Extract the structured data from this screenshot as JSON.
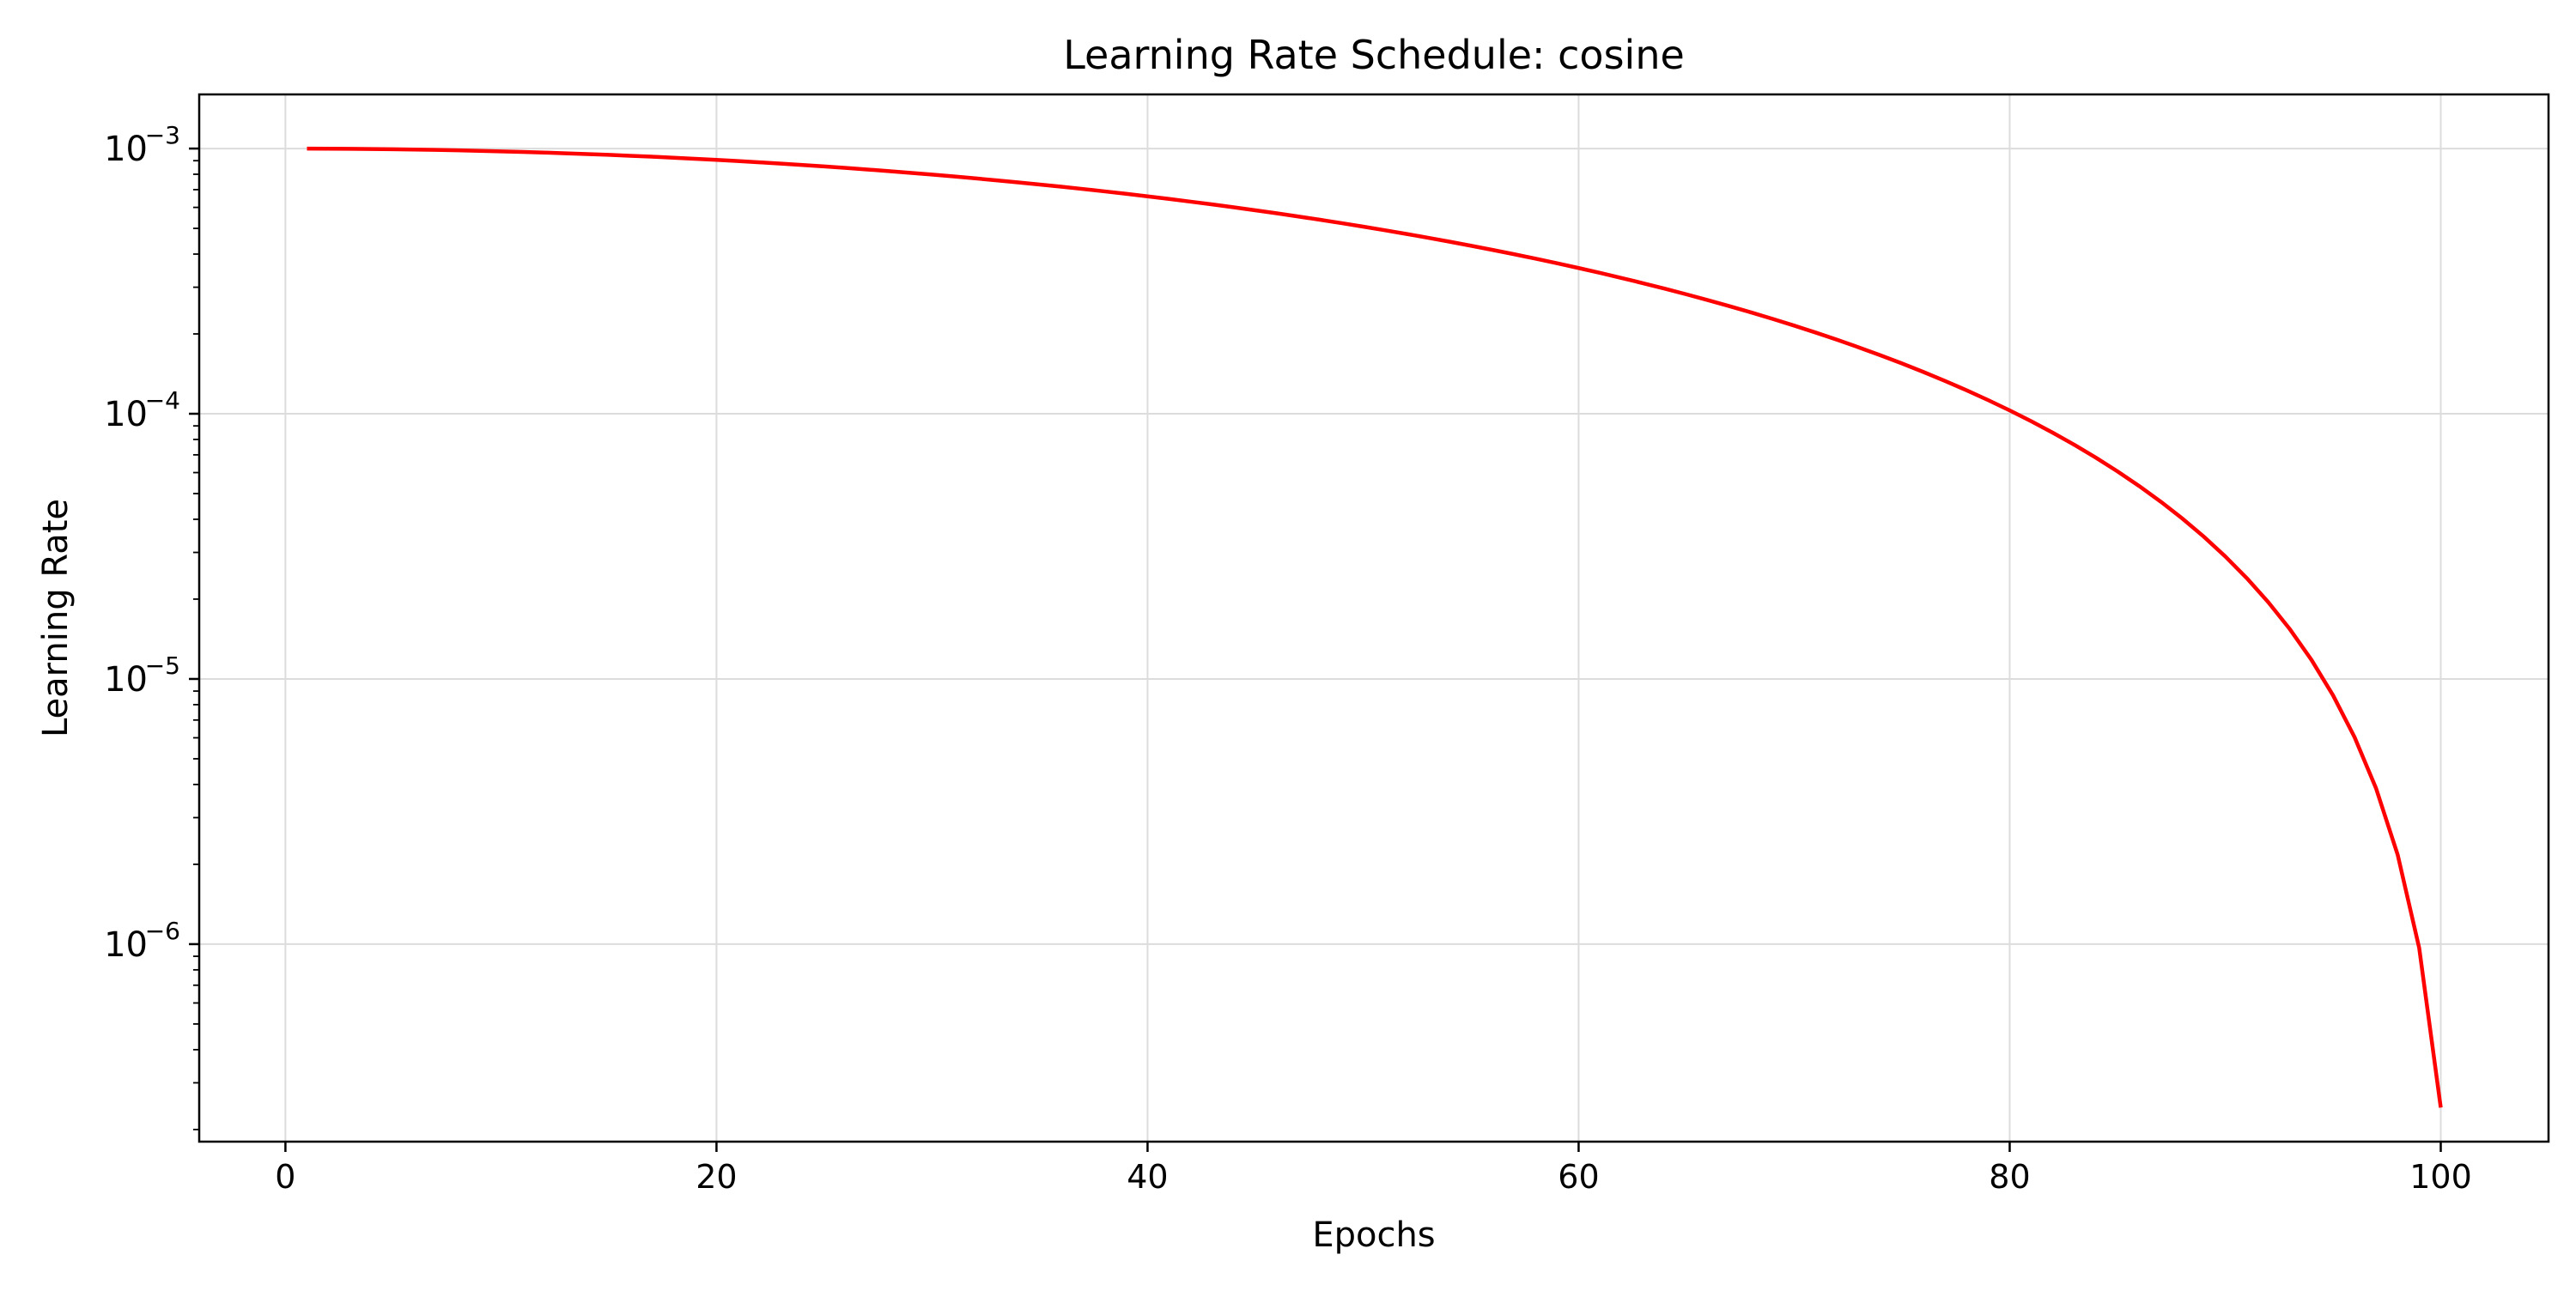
{
  "chart_data": {
    "type": "line",
    "title": "Learning Rate Schedule: cosine",
    "xlabel": "Epochs",
    "ylabel": "Learning Rate",
    "xlim": [
      -4,
      105
    ],
    "ylim": [
      1.8e-07,
      0.0016
    ],
    "yscale": "log",
    "grid": true,
    "legend": "none",
    "x_ticks": [
      0,
      20,
      40,
      60,
      80,
      100
    ],
    "x_tick_labels": [
      "0",
      "20",
      "40",
      "60",
      "80",
      "100"
    ],
    "y_ticks": [
      1e-06,
      1e-05,
      0.0001,
      0.001
    ],
    "y_tick_labels": [
      {
        "base": "10",
        "exp": "−6"
      },
      {
        "base": "10",
        "exp": "−5"
      },
      {
        "base": "10",
        "exp": "−4"
      },
      {
        "base": "10",
        "exp": "−3"
      }
    ],
    "series": [
      {
        "color": "#ff0000",
        "schedule": "cosine",
        "lr_max": 0.001,
        "lr_min": 0,
        "x_range": [
          1,
          100
        ],
        "total_epochs": 101
      }
    ]
  },
  "colors": {
    "line": "#ff0000",
    "grid": "#dcdcdc",
    "axes": "#000000",
    "background": "#ffffff"
  }
}
